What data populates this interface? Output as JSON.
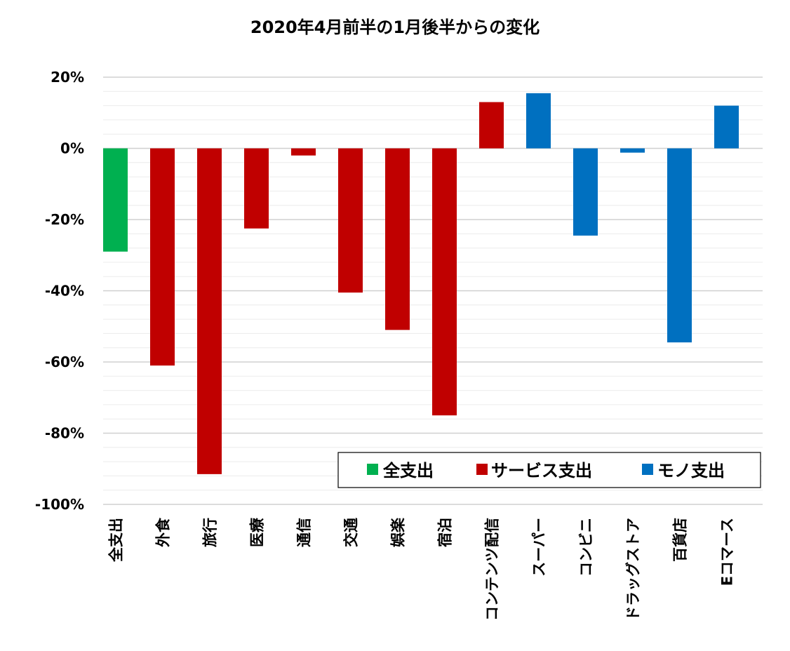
{
  "chart_data": {
    "type": "bar",
    "title": "2020年4月前半の1月後半からの変化",
    "xlabel": "",
    "ylabel": "",
    "ylim": [
      -100,
      20
    ],
    "yticks": [
      20,
      0,
      -20,
      -40,
      -60,
      -80,
      -100
    ],
    "ytick_labels": [
      "20%",
      "0%",
      "-20%",
      "-40%",
      "-60%",
      "-80%",
      "-100%"
    ],
    "minor_gridline_step": 4,
    "grid": true,
    "legend_position": "bottom-right",
    "legend": [
      {
        "label": "全支出",
        "color": "#00b050"
      },
      {
        "label": "サービス支出",
        "color": "#c00000"
      },
      {
        "label": "モノ支出",
        "color": "#0070c0"
      }
    ],
    "categories": [
      "全支出",
      "外食",
      "旅行",
      "医療",
      "通信",
      "交通",
      "娯楽",
      "宿泊",
      "コンテンツ配信",
      "スーパー",
      "コンビニ",
      "ドラッグストア",
      "百貨店",
      "Eコマース"
    ],
    "values": [
      -29,
      -61,
      -91.5,
      -22.5,
      -2,
      -40.5,
      -51,
      -75,
      13,
      15.5,
      -24.5,
      -1.2,
      -54.5,
      12
    ],
    "colors": [
      "#00b050",
      "#c00000",
      "#c00000",
      "#c00000",
      "#c00000",
      "#c00000",
      "#c00000",
      "#c00000",
      "#c00000",
      "#0070c0",
      "#0070c0",
      "#0070c0",
      "#0070c0",
      "#0070c0"
    ]
  }
}
